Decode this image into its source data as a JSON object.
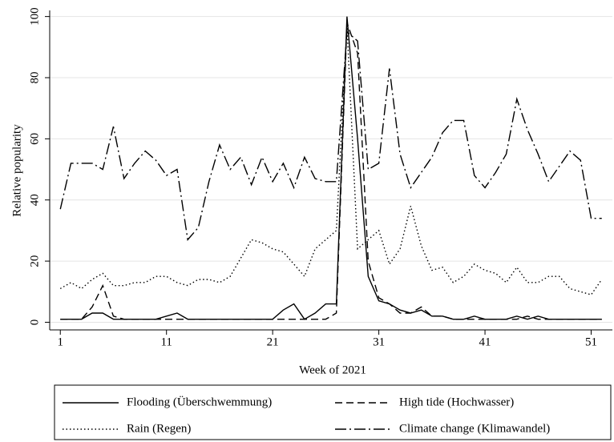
{
  "chart_data": {
    "type": "line",
    "x_label": "Week of 2021",
    "y_label": "Relative popularity",
    "x": [
      1,
      2,
      3,
      4,
      5,
      6,
      7,
      8,
      9,
      10,
      11,
      12,
      13,
      14,
      15,
      16,
      17,
      18,
      19,
      20,
      21,
      22,
      23,
      24,
      25,
      26,
      27,
      28,
      29,
      30,
      31,
      32,
      33,
      34,
      35,
      36,
      37,
      38,
      39,
      40,
      41,
      42,
      43,
      44,
      45,
      46,
      47,
      48,
      49,
      50,
      51,
      52
    ],
    "xlim": [
      0,
      53
    ],
    "xticks": [
      1,
      11,
      21,
      31,
      41,
      51
    ],
    "ylim": [
      -2.5,
      102
    ],
    "yticks": [
      0,
      20,
      40,
      60,
      80,
      100
    ],
    "grid": true,
    "legend": "bottom",
    "series": [
      {
        "name": "Flooding (Überschwemmung)",
        "color": "#000000",
        "dash": "solid",
        "values": [
          1,
          1,
          1,
          3,
          3,
          1,
          1,
          1,
          1,
          1,
          2,
          3,
          1,
          1,
          1,
          1,
          1,
          1,
          1,
          1,
          1,
          4,
          6,
          1,
          3,
          6,
          6,
          100,
          60,
          15,
          7,
          6,
          4,
          3,
          4,
          2,
          2,
          1,
          1,
          2,
          1,
          1,
          1,
          2,
          1,
          2,
          1,
          1,
          1,
          1,
          1,
          1
        ]
      },
      {
        "name": "High tide (Hochwasser)",
        "color": "#000000",
        "dash": "dashed",
        "values": [
          1,
          1,
          1,
          5,
          12,
          2,
          1,
          1,
          1,
          1,
          1,
          1,
          1,
          1,
          1,
          1,
          1,
          1,
          1,
          1,
          1,
          1,
          1,
          1,
          1,
          1,
          3,
          98,
          88,
          20,
          8,
          6,
          3,
          3,
          5,
          2,
          2,
          1,
          1,
          1,
          1,
          1,
          1,
          1,
          2,
          1,
          1,
          1,
          1,
          1,
          1,
          1
        ]
      },
      {
        "name": "Rain (Regen)",
        "color": "#000000",
        "dash": "dotted",
        "values": [
          11,
          13,
          11,
          14,
          16,
          12,
          12,
          13,
          13,
          15,
          15,
          13,
          12,
          14,
          14,
          13,
          15,
          21,
          27,
          26,
          24,
          23,
          19,
          15,
          24,
          27,
          30,
          97,
          24,
          27,
          30,
          19,
          24,
          38,
          25,
          17,
          18,
          13,
          15,
          19,
          17,
          16,
          13,
          18,
          13,
          13,
          15,
          15,
          11,
          10,
          9,
          14
        ]
      },
      {
        "name": "Climate change (Klimawandel)",
        "color": "#000000",
        "dash": "dashdot",
        "values": [
          37,
          52,
          52,
          52,
          50,
          64,
          47,
          52,
          56,
          53,
          48,
          50,
          27,
          31,
          46,
          58,
          50,
          54,
          45,
          54,
          46,
          52,
          44,
          54,
          47,
          46,
          46,
          95,
          92,
          50,
          52,
          83,
          55,
          44,
          49,
          54,
          62,
          66,
          66,
          48,
          44,
          49,
          55,
          73,
          63,
          55,
          46,
          51,
          56,
          53,
          34,
          34
        ]
      }
    ]
  }
}
